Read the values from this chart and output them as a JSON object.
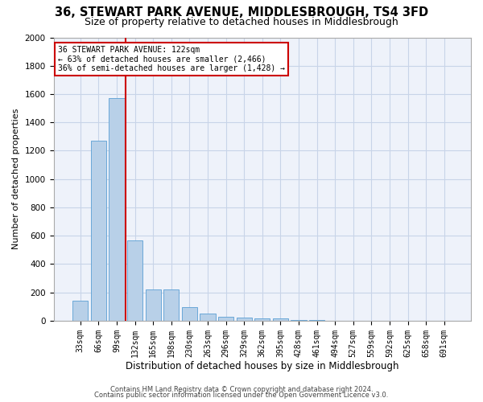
{
  "title": "36, STEWART PARK AVENUE, MIDDLESBROUGH, TS4 3FD",
  "subtitle": "Size of property relative to detached houses in Middlesbrough",
  "xlabel": "Distribution of detached houses by size in Middlesbrough",
  "ylabel": "Number of detached properties",
  "footer_line1": "Contains HM Land Registry data © Crown copyright and database right 2024.",
  "footer_line2": "Contains public sector information licensed under the Open Government Licence v3.0.",
  "bins": [
    "33sqm",
    "66sqm",
    "99sqm",
    "132sqm",
    "165sqm",
    "198sqm",
    "230sqm",
    "263sqm",
    "296sqm",
    "329sqm",
    "362sqm",
    "395sqm",
    "428sqm",
    "461sqm",
    "494sqm",
    "527sqm",
    "559sqm",
    "592sqm",
    "625sqm",
    "658sqm",
    "691sqm"
  ],
  "values": [
    140,
    1270,
    1570,
    570,
    220,
    220,
    95,
    50,
    30,
    20,
    15,
    15,
    5,
    3,
    2,
    1,
    1,
    1,
    0,
    0,
    0
  ],
  "bar_color": "#b8d0e8",
  "bar_edge_color": "#5a9fd4",
  "vline_color": "#cc0000",
  "annotation_line1": "36 STEWART PARK AVENUE: 122sqm",
  "annotation_line2": "← 63% of detached houses are smaller (2,466)",
  "annotation_line3": "36% of semi-detached houses are larger (1,428) →",
  "annotation_box_color": "#cc0000",
  "ylim": [
    0,
    2000
  ],
  "yticks": [
    0,
    200,
    400,
    600,
    800,
    1000,
    1200,
    1400,
    1600,
    1800,
    2000
  ],
  "grid_color": "#c8d4e8",
  "background_color": "#eef2fa",
  "title_fontsize": 10.5,
  "subtitle_fontsize": 9,
  "ylabel_fontsize": 8,
  "xlabel_fontsize": 8.5,
  "tick_fontsize": 7,
  "footer_fontsize": 6
}
